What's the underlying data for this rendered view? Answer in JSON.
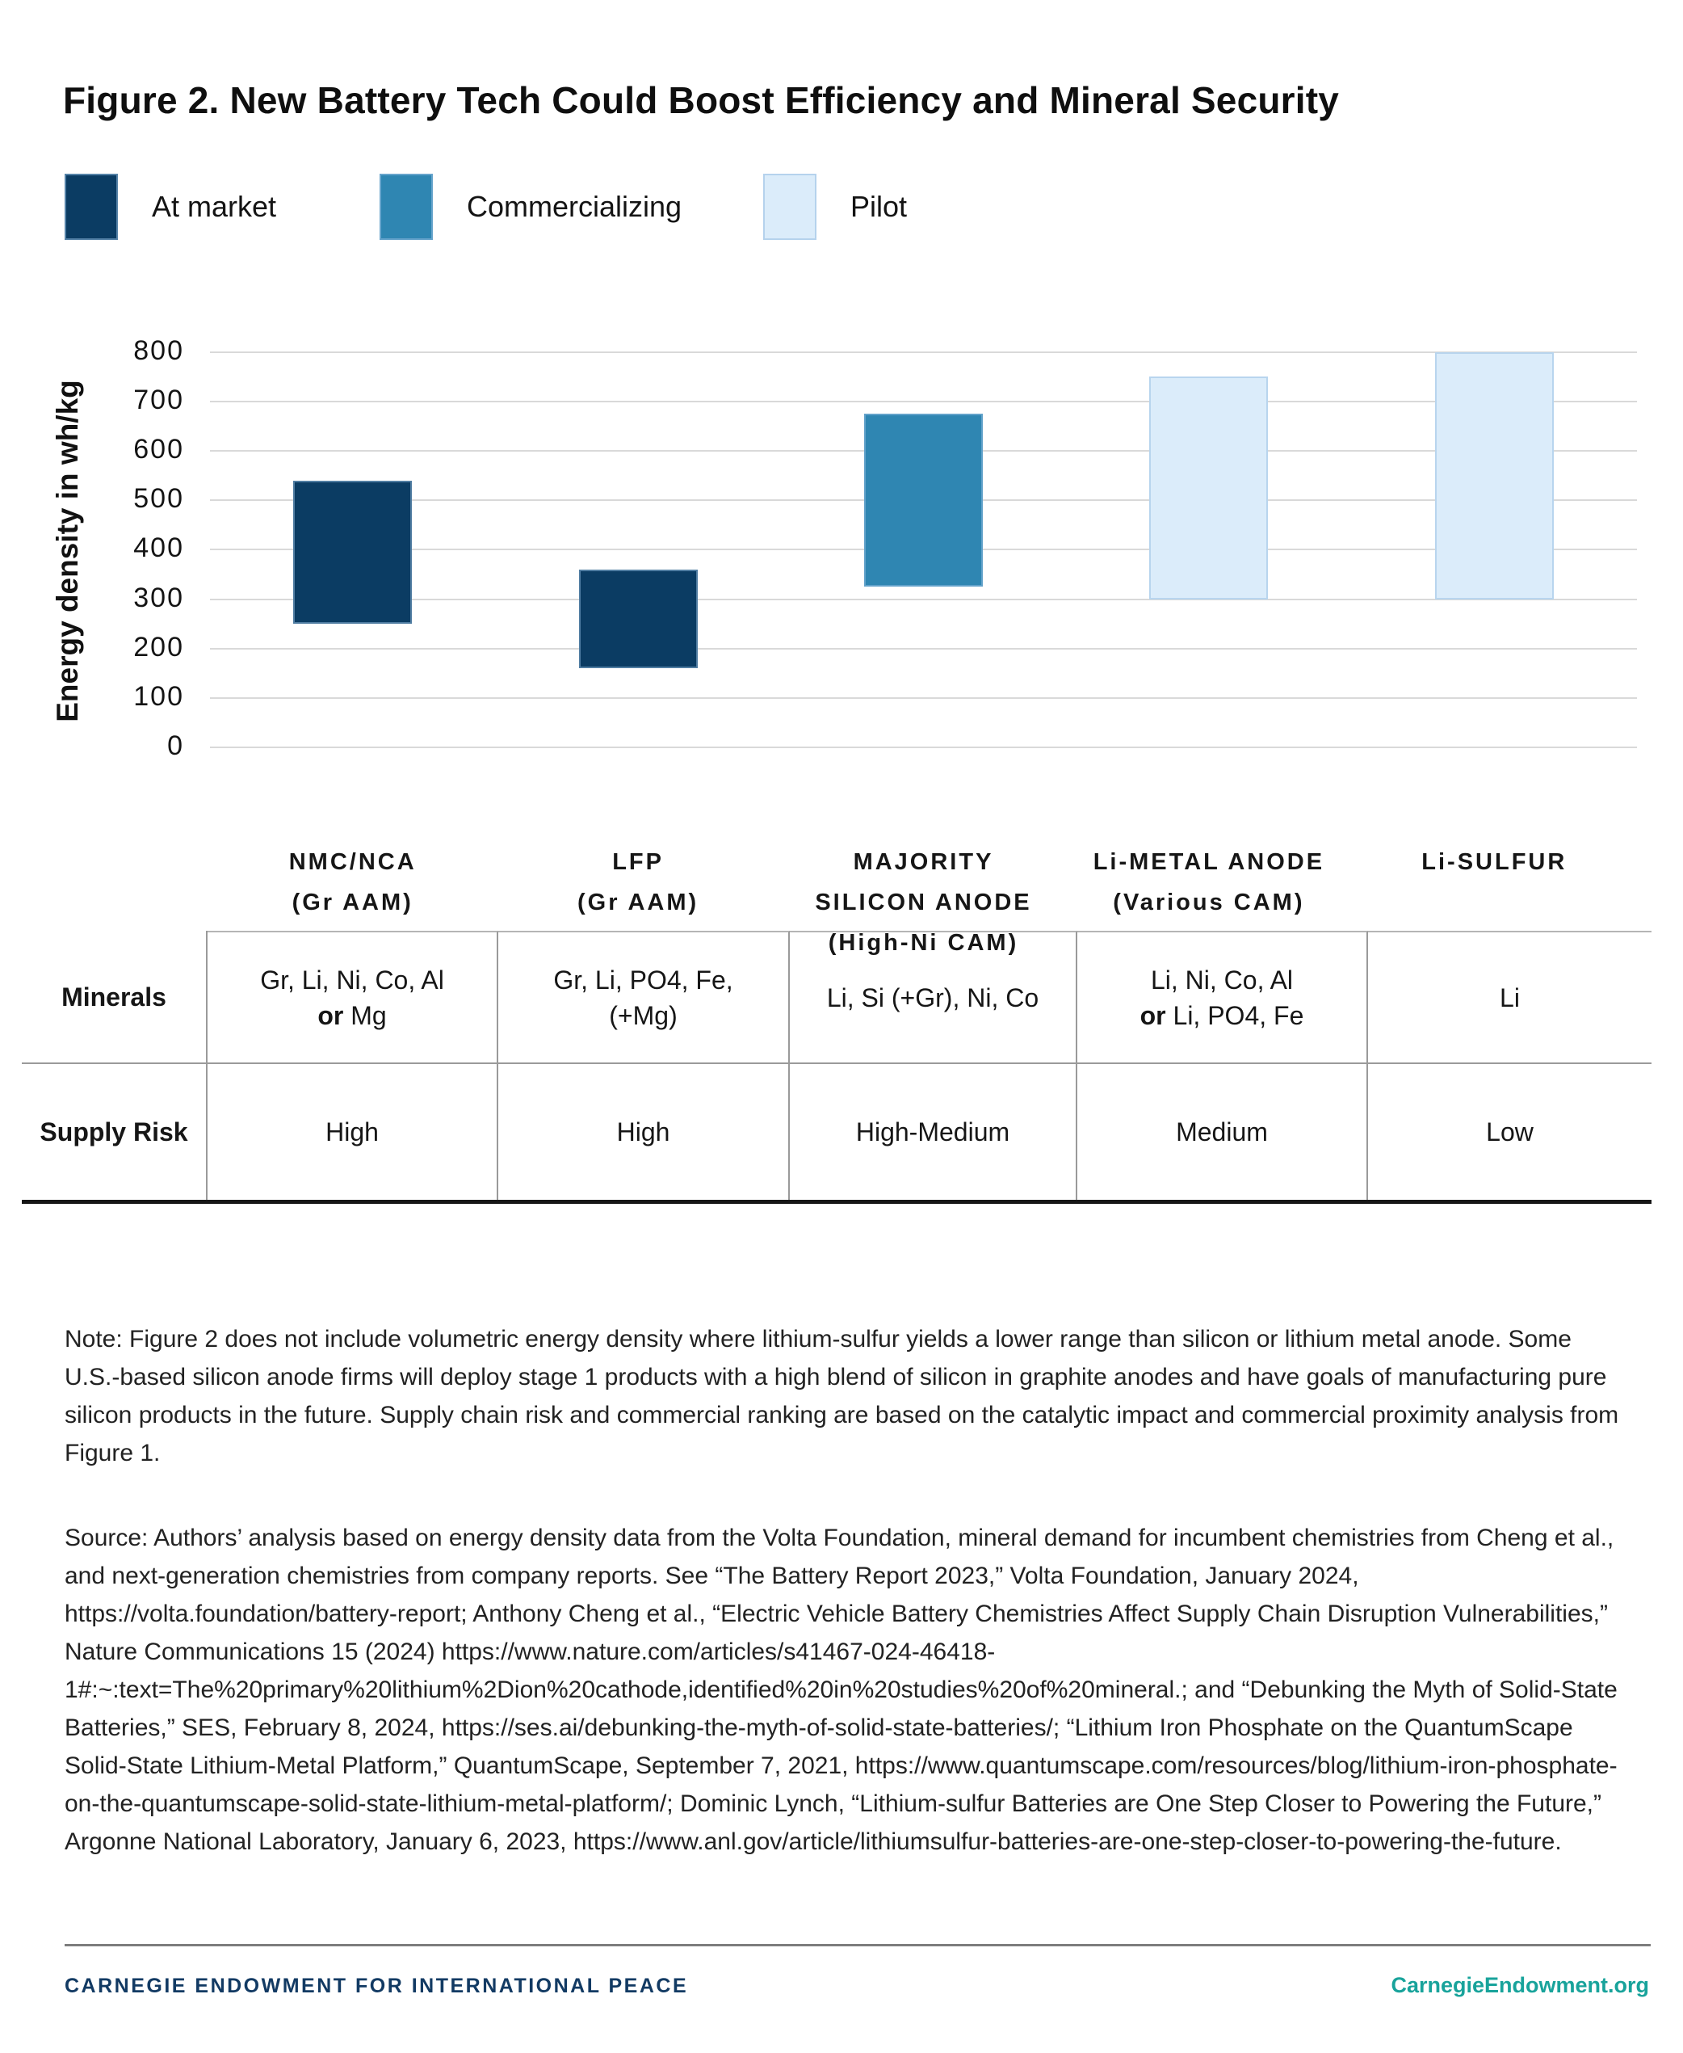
{
  "title": "Figure 2. New Battery Tech Could Boost Efficiency and Mineral Security",
  "legend": [
    {
      "label": "At market",
      "color": "#0b3c63"
    },
    {
      "label": "Commercializing",
      "color": "#2f86b2"
    },
    {
      "label": "Pilot",
      "color": "#dbecfa"
    }
  ],
  "chart_data": {
    "type": "bar",
    "subtype": "floating-range-columns",
    "title": "",
    "xlabel": "",
    "ylabel": "Energy density in wh/kg",
    "y_unit": "wh/kg",
    "ylim": [
      0,
      800
    ],
    "yticks": [
      0,
      100,
      200,
      300,
      400,
      500,
      600,
      700,
      800
    ],
    "grid": "horizontal",
    "legend_position": "top-left",
    "series": [
      {
        "name": "NMC/NCA (Gr AAM)",
        "label_lines": [
          "NMC/NCA",
          "(Gr AAM)"
        ],
        "stage": "At market",
        "range_wh_kg": [
          250,
          540
        ]
      },
      {
        "name": "LFP (Gr AAM)",
        "label_lines": [
          "LFP",
          "(Gr AAM)"
        ],
        "stage": "At market",
        "range_wh_kg": [
          160,
          360
        ]
      },
      {
        "name": "Majority Silicon Anode (High-Ni CAM)",
        "label_lines": [
          "MAJORITY",
          "SILICON ANODE",
          "(High-Ni CAM)"
        ],
        "stage": "Commercializing",
        "range_wh_kg": [
          325,
          675
        ]
      },
      {
        "name": "Li-Metal Anode (Various CAM)",
        "label_lines": [
          "Li-METAL ANODE",
          "(Various CAM)"
        ],
        "stage": "Pilot",
        "range_wh_kg": [
          300,
          750
        ]
      },
      {
        "name": "Li-Sulfur",
        "label_lines": [
          "Li-SULFUR"
        ],
        "stage": "Pilot",
        "range_wh_kg": [
          300,
          800
        ]
      }
    ]
  },
  "table": {
    "row_headers": [
      "Minerals",
      "Supply Risk"
    ],
    "minerals": [
      {
        "lines": [
          [
            {
              "t": "Gr, Li, Ni, Co, Al"
            }
          ],
          [
            {
              "t": "or",
              "b": true
            },
            {
              "t": " Mg"
            }
          ]
        ]
      },
      {
        "lines": [
          [
            {
              "t": "Gr, Li, PO4, Fe,"
            }
          ],
          [
            {
              "t": "(+Mg)"
            }
          ]
        ]
      },
      {
        "lines": [
          [
            {
              "t": "Li, Si (+Gr), Ni, Co"
            }
          ]
        ]
      },
      {
        "lines": [
          [
            {
              "t": "Li, Ni, Co, Al"
            }
          ],
          [
            {
              "t": "or",
              "b": true
            },
            {
              "t": " Li, PO4, Fe"
            }
          ]
        ]
      },
      {
        "lines": [
          [
            {
              "t": "Li"
            }
          ]
        ]
      }
    ],
    "supply_risk": [
      "High",
      "High",
      "High-Medium",
      "Medium",
      "Low"
    ]
  },
  "note": "Note: Figure 2 does not include volumetric energy density where lithium-sulfur yields a lower range than silicon or lithium metal anode. Some U.S.-based silicon anode firms will deploy stage 1 products with a high blend of silicon in graphite anodes and have goals of manufacturing pure silicon products in the future. Supply chain risk and commercial ranking are based on the catalytic impact and commercial proximity analysis from Figure 1.",
  "source": "Source: Authors’ analysis based on energy density data from the Volta Foundation, mineral demand for incumbent chemistries from Cheng et al., and next-generation chemistries from company reports. See “The Battery Report 2023,” Volta Foundation, January 2024, https://volta.foundation/battery-report; Anthony Cheng et al., “Electric Vehicle Battery Chemistries Affect Supply Chain Disruption Vulnerabilities,” Nature Communications 15 (2024) https://www.nature.com/articles/s41467-024-46418-1#:~:text=The%20primary%20lithium%2Dion%20cathode,identified%20in%20studies%20of%20mineral.; and “Debunking the Myth of Solid-State Batteries,” SES, February 8, 2024, https://ses.ai/debunking-the-myth-of-solid-state-batteries/; “Lithium Iron Phosphate on the QuantumScape Solid-State Lithium-Metal Platform,” QuantumScape, September 7, 2021, https://www.quantumscape.com/resources/blog/lithium-iron-phosphate-on-the-quantumscape-solid-state-lithium-metal-platform/; Dominic Lynch, “Lithium-sulfur Batteries are One Step Closer to Powering the Future,” Argonne National Laboratory, January 6, 2023, https://www.anl.gov/article/lithiumsulfur-batteries-are-one-step-closer-to-powering-the-future.",
  "footer": {
    "left": "CARNEGIE ENDOWMENT FOR INTERNATIONAL PEACE",
    "right": "CarnegieEndowment.org"
  }
}
